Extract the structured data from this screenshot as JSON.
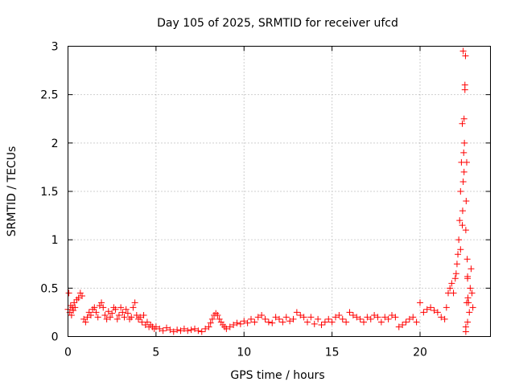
{
  "chart_data": {
    "type": "scatter",
    "title": "Day 105 of 2025, SRMTID for receiver ufcd",
    "xlabel": "GPS time / hours",
    "ylabel": "SRMTID / TECUs",
    "xlim": [
      0,
      24
    ],
    "ylim": [
      0,
      3
    ],
    "xticks": [
      0,
      5,
      10,
      15,
      20
    ],
    "yticks": [
      0,
      0.5,
      1,
      1.5,
      2,
      2.5,
      3
    ],
    "xtick_labels": [
      "0",
      "5",
      "10",
      "15",
      "20"
    ],
    "ytick_labels": [
      "0",
      "0.5",
      "1",
      "1.5",
      "2",
      "2.5",
      "3"
    ],
    "grid": true,
    "legend": "none",
    "marker": "+",
    "color": "#ff0000",
    "series": [
      {
        "name": "SRMTID",
        "x": [
          0.0,
          0.05,
          0.1,
          0.15,
          0.2,
          0.25,
          0.3,
          0.35,
          0.4,
          0.5,
          0.6,
          0.7,
          0.8,
          0.9,
          1.0,
          1.1,
          1.2,
          1.3,
          1.4,
          1.5,
          1.6,
          1.7,
          1.8,
          1.9,
          2.0,
          2.1,
          2.2,
          2.3,
          2.4,
          2.5,
          2.6,
          2.7,
          2.8,
          2.9,
          3.0,
          3.1,
          3.2,
          3.3,
          3.4,
          3.5,
          3.6,
          3.7,
          3.8,
          3.9,
          4.0,
          4.1,
          4.2,
          4.3,
          4.4,
          4.5,
          4.6,
          4.7,
          4.8,
          4.9,
          5.0,
          5.2,
          5.4,
          5.6,
          5.8,
          6.0,
          6.2,
          6.4,
          6.6,
          6.8,
          7.0,
          7.2,
          7.4,
          7.6,
          7.8,
          8.0,
          8.1,
          8.2,
          8.3,
          8.4,
          8.5,
          8.6,
          8.7,
          8.8,
          8.9,
          9.0,
          9.2,
          9.4,
          9.6,
          9.8,
          10.0,
          10.2,
          10.4,
          10.6,
          10.8,
          11.0,
          11.2,
          11.4,
          11.6,
          11.8,
          12.0,
          12.2,
          12.4,
          12.6,
          12.8,
          13.0,
          13.2,
          13.4,
          13.6,
          13.8,
          14.0,
          14.2,
          14.4,
          14.6,
          14.8,
          15.0,
          15.2,
          15.4,
          15.6,
          15.8,
          16.0,
          16.2,
          16.4,
          16.6,
          16.8,
          17.0,
          17.2,
          17.4,
          17.6,
          17.8,
          18.0,
          18.2,
          18.4,
          18.6,
          18.8,
          19.0,
          19.2,
          19.4,
          19.6,
          19.8,
          20.0,
          20.2,
          20.4,
          20.6,
          20.8,
          21.0,
          21.2,
          21.4,
          21.5,
          21.6,
          21.7,
          21.8,
          21.9,
          22.0,
          22.05,
          22.1,
          22.15,
          22.2,
          22.25,
          22.3,
          22.35,
          22.4,
          22.42,
          22.45,
          22.48,
          22.5,
          22.52,
          22.55,
          22.58,
          22.6,
          22.62,
          22.65,
          22.68,
          22.7,
          22.72,
          22.75,
          22.8,
          22.85,
          22.9,
          22.95,
          23.0,
          22.6,
          22.6,
          22.7,
          22.3,
          22.4,
          22.5,
          22.55,
          22.45,
          22.65,
          22.7
        ],
        "y": [
          0.28,
          0.45,
          0.25,
          0.32,
          0.22,
          0.3,
          0.27,
          0.35,
          0.3,
          0.38,
          0.4,
          0.45,
          0.42,
          0.18,
          0.15,
          0.2,
          0.25,
          0.22,
          0.28,
          0.3,
          0.25,
          0.2,
          0.32,
          0.35,
          0.3,
          0.22,
          0.18,
          0.26,
          0.2,
          0.24,
          0.3,
          0.28,
          0.18,
          0.22,
          0.3,
          0.25,
          0.2,
          0.28,
          0.24,
          0.18,
          0.2,
          0.3,
          0.35,
          0.22,
          0.18,
          0.2,
          0.15,
          0.22,
          0.12,
          0.15,
          0.1,
          0.12,
          0.1,
          0.08,
          0.1,
          0.08,
          0.06,
          0.09,
          0.07,
          0.05,
          0.07,
          0.06,
          0.08,
          0.06,
          0.07,
          0.08,
          0.06,
          0.05,
          0.08,
          0.1,
          0.14,
          0.18,
          0.22,
          0.24,
          0.22,
          0.18,
          0.15,
          0.12,
          0.1,
          0.08,
          0.1,
          0.12,
          0.14,
          0.13,
          0.16,
          0.14,
          0.18,
          0.15,
          0.2,
          0.22,
          0.18,
          0.15,
          0.14,
          0.2,
          0.18,
          0.15,
          0.2,
          0.16,
          0.18,
          0.25,
          0.22,
          0.2,
          0.15,
          0.2,
          0.13,
          0.18,
          0.12,
          0.15,
          0.18,
          0.15,
          0.2,
          0.22,
          0.18,
          0.15,
          0.25,
          0.22,
          0.2,
          0.18,
          0.15,
          0.2,
          0.18,
          0.22,
          0.2,
          0.15,
          0.2,
          0.18,
          0.22,
          0.2,
          0.1,
          0.12,
          0.15,
          0.18,
          0.2,
          0.15,
          0.35,
          0.25,
          0.28,
          0.3,
          0.27,
          0.25,
          0.2,
          0.18,
          0.3,
          0.45,
          0.5,
          0.55,
          0.45,
          0.6,
          0.65,
          0.75,
          0.85,
          1.0,
          1.2,
          1.5,
          1.8,
          2.2,
          1.3,
          1.6,
          1.9,
          1.7,
          2.0,
          2.6,
          2.9,
          1.1,
          1.4,
          1.8,
          0.8,
          0.6,
          0.4,
          0.35,
          0.25,
          0.5,
          0.7,
          0.45,
          0.3,
          0.05,
          0.1,
          0.15,
          0.9,
          1.15,
          2.25,
          2.55,
          2.95,
          0.35,
          0.62
        ]
      }
    ]
  }
}
